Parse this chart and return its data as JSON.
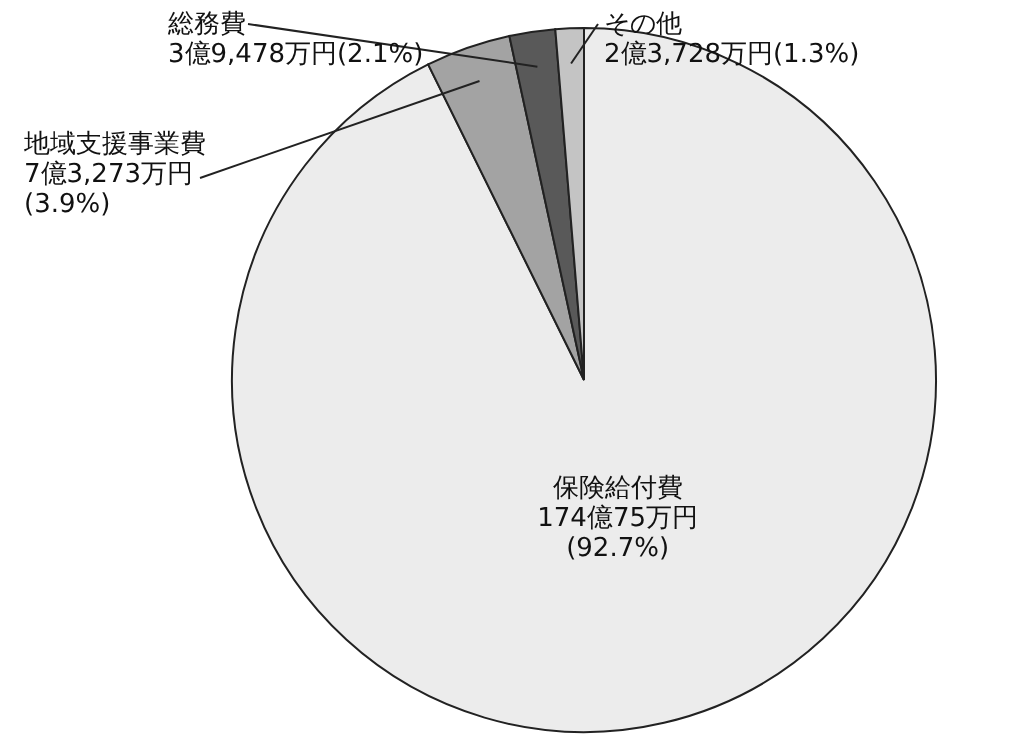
{
  "chart_data": {
    "type": "pie",
    "categories": [
      "保険給付費",
      "地域支援事業費",
      "総務費",
      "その他"
    ],
    "values": [
      92.7,
      3.9,
      2.1,
      1.3
    ],
    "value_labels": [
      "174億75万円\n(92.7%)",
      "7億3,273万円\n(3.9%)",
      "3億9,478万円(2.1%)",
      "2億3,728万円(1.3%)"
    ],
    "colors": [
      "#ececec",
      "#a3a3a3",
      "#595959",
      "#c4c4c4"
    ]
  }
}
